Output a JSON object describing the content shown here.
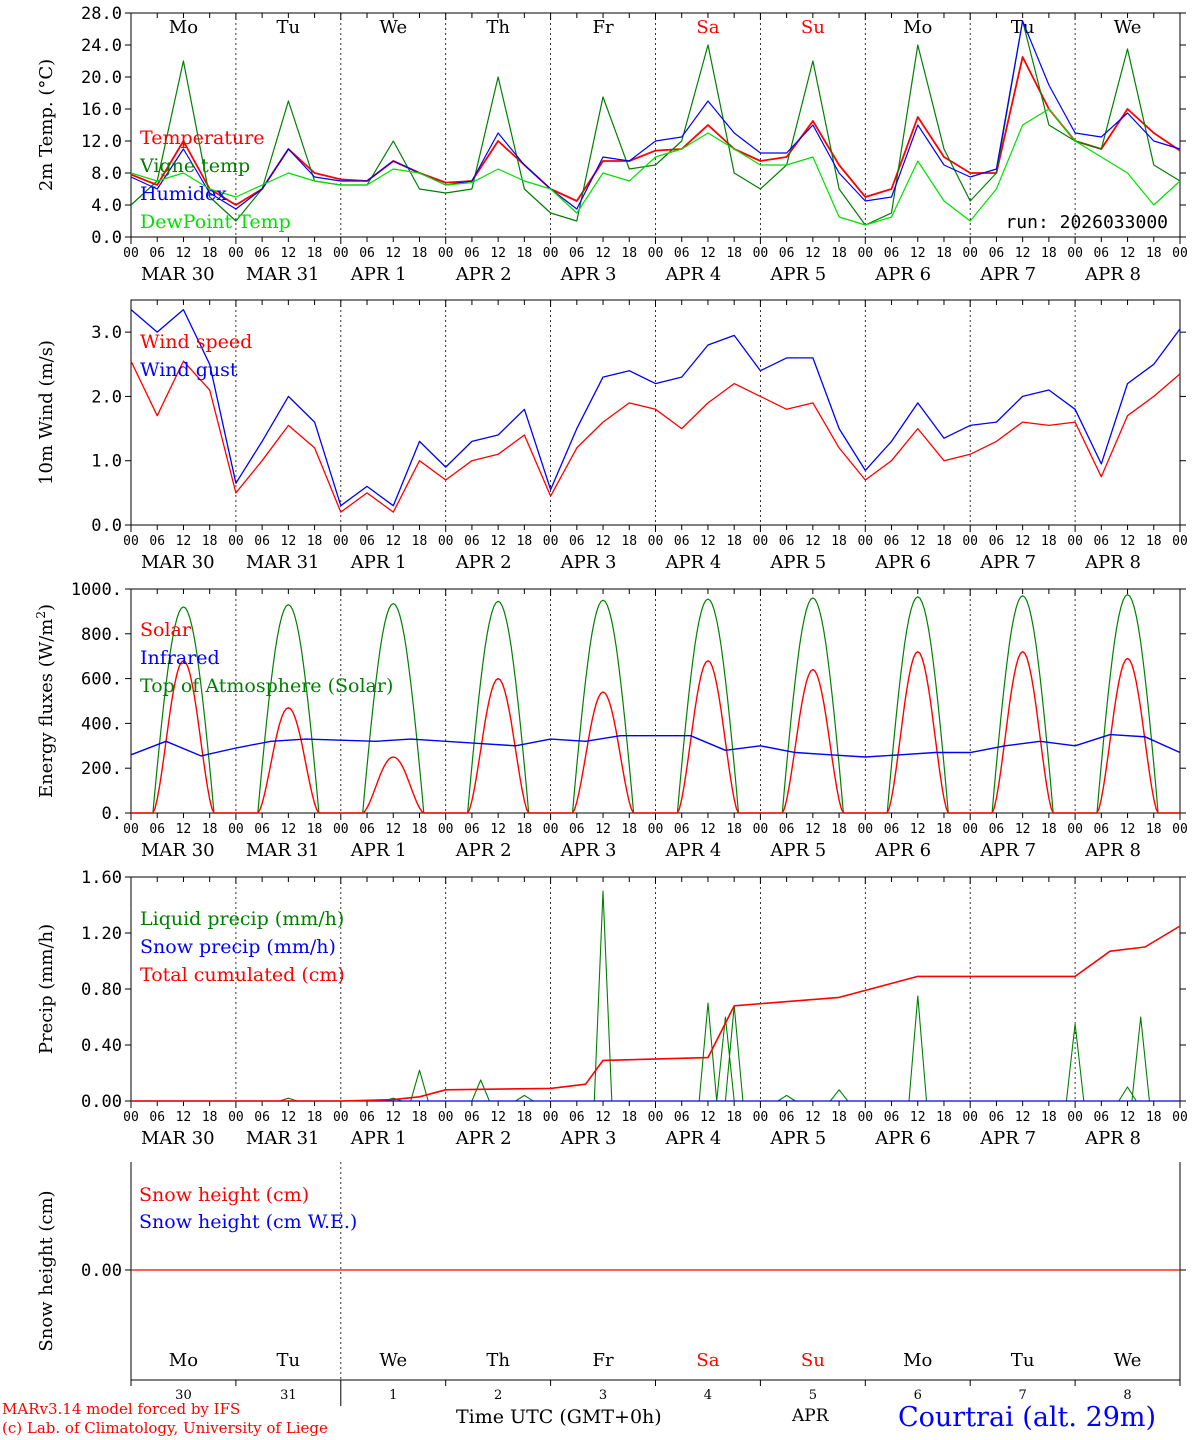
{
  "run_label": "run: 2026033000",
  "footer": {
    "model_line": "MARv3.14 model forced by IFS",
    "copyright_line": "(c) Lab. of Climatology, University of Liege",
    "time_axis_label": "Time UTC (GMT+0h)",
    "month_label": "APR",
    "station_label": "Courtrai (alt. 29m)"
  },
  "days": [
    "Mo",
    "Tu",
    "We",
    "Th",
    "Fr",
    "Sa",
    "Su",
    "Mo",
    "Tu",
    "We"
  ],
  "weekend_flags": [
    false,
    false,
    false,
    false,
    false,
    true,
    true,
    false,
    false,
    false
  ],
  "date_labels": [
    "MAR 30",
    "MAR 31",
    "APR  1",
    "APR  2",
    "APR  3",
    "APR  4",
    "APR  5",
    "APR  6",
    "APR  7",
    "APR  8"
  ],
  "day_numbers": [
    "30",
    "31",
    "1",
    "2",
    "3",
    "4",
    "5",
    "6",
    "7",
    "8"
  ],
  "hour_ticks": [
    "00",
    "06",
    "12",
    "18"
  ],
  "last_tick": "00",
  "colors": {
    "red": "#ff0000",
    "green": "#008000",
    "blue": "#0000ff",
    "lightgreen": "#00e000",
    "grid": "#000000"
  },
  "chart_data": [
    {
      "type": "line",
      "title": "Temperature",
      "ylabel": "2m Temp. (°C)",
      "ylim": [
        0,
        28
      ],
      "yticks": [
        "0.0",
        "4.0",
        "8.0",
        "12.0",
        "16.0",
        "20.0",
        "24.0",
        "28.0"
      ],
      "yticks_values": [
        0,
        4,
        8,
        12,
        16,
        20,
        24,
        28
      ],
      "x_hours": [
        0,
        6,
        12,
        18,
        24,
        30,
        36,
        42,
        48,
        54,
        60,
        66,
        72,
        78,
        84,
        90,
        96,
        102,
        108,
        114,
        120,
        126,
        132,
        138,
        144,
        150,
        156,
        162,
        168,
        174,
        180,
        186,
        192,
        198,
        204,
        210,
        216,
        222,
        228,
        234,
        240
      ],
      "series": [
        {
          "name": "Temperature",
          "color": "red",
          "values": [
            7.8,
            6.5,
            12.0,
            6.0,
            4.0,
            6.0,
            11.0,
            8.0,
            7.2,
            7.0,
            9.5,
            8.0,
            6.8,
            7.0,
            12.0,
            9.0,
            6.0,
            4.5,
            9.5,
            9.5,
            10.8,
            11.0,
            14.0,
            11.0,
            9.5,
            10.0,
            14.5,
            9.0,
            5.0,
            6.0,
            15.0,
            10.0,
            8.0,
            8.0,
            22.5,
            16.0,
            12.0,
            11.0,
            16.0,
            13.0,
            10.8
          ]
        },
        {
          "name": "Vigne temp",
          "color": "green",
          "values": [
            4.0,
            7.0,
            22.0,
            5.0,
            2.0,
            6.0,
            17.0,
            7.0,
            6.5,
            6.5,
            12.0,
            6.0,
            5.5,
            6.0,
            20.0,
            6.0,
            3.0,
            2.0,
            17.5,
            8.5,
            9.0,
            12.0,
            24.0,
            8.0,
            6.0,
            9.0,
            22.0,
            6.0,
            1.5,
            3.0,
            24.0,
            11.0,
            4.5,
            8.0,
            27.0,
            14.0,
            12.0,
            11.0,
            23.5,
            9.0,
            7.0
          ]
        },
        {
          "name": "Humidex",
          "color": "blue",
          "values": [
            7.5,
            6.0,
            11.0,
            5.5,
            3.5,
            6.0,
            11.0,
            7.5,
            7.0,
            7.0,
            9.5,
            8.0,
            6.5,
            7.0,
            13.0,
            9.0,
            6.0,
            3.5,
            10.0,
            9.5,
            12.0,
            12.5,
            17.0,
            13.0,
            10.5,
            10.5,
            14.0,
            8.0,
            4.5,
            5.0,
            14.0,
            9.0,
            7.5,
            8.5,
            27.0,
            19.0,
            13.0,
            12.5,
            15.5,
            12.0,
            11.0
          ]
        },
        {
          "name": "DewPoint Temp",
          "color": "lightgreen",
          "values": [
            8.0,
            7.0,
            8.0,
            6.0,
            5.0,
            6.5,
            8.0,
            7.0,
            6.5,
            6.5,
            8.5,
            8.0,
            6.5,
            6.8,
            8.5,
            7.0,
            6.0,
            3.0,
            8.0,
            7.0,
            10.0,
            11.0,
            13.0,
            11.0,
            9.0,
            9.0,
            10.0,
            2.5,
            1.5,
            2.5,
            9.5,
            4.5,
            2.0,
            6.0,
            14.0,
            16.0,
            12.0,
            10.0,
            8.0,
            4.0,
            7.0
          ]
        }
      ]
    },
    {
      "type": "line",
      "title": "Wind",
      "ylabel": "10m Wind (m/s)",
      "ylim": [
        0,
        3.5
      ],
      "yticks": [
        "0.0",
        "1.0",
        "2.0",
        "3.0"
      ],
      "yticks_values": [
        0,
        1,
        2,
        3
      ],
      "x_hours": [
        0,
        6,
        12,
        18,
        24,
        30,
        36,
        42,
        48,
        54,
        60,
        66,
        72,
        78,
        84,
        90,
        96,
        102,
        108,
        114,
        120,
        126,
        132,
        138,
        144,
        150,
        156,
        162,
        168,
        174,
        180,
        186,
        192,
        198,
        204,
        210,
        216,
        222,
        228,
        234,
        240
      ],
      "series": [
        {
          "name": "Wind speed",
          "color": "red",
          "values": [
            2.55,
            1.7,
            2.55,
            2.1,
            0.5,
            1.0,
            1.55,
            1.2,
            0.2,
            0.5,
            0.2,
            1.0,
            0.7,
            1.0,
            1.1,
            1.4,
            0.45,
            1.2,
            1.6,
            1.9,
            1.8,
            1.5,
            1.9,
            2.2,
            2.0,
            1.8,
            1.9,
            1.2,
            0.7,
            1.0,
            1.5,
            1.0,
            1.1,
            1.3,
            1.6,
            1.55,
            1.6,
            0.75,
            1.7,
            2.0,
            2.35
          ]
        },
        {
          "name": "Wind gust",
          "color": "blue",
          "values": [
            3.35,
            3.0,
            3.35,
            2.5,
            0.65,
            1.3,
            2.0,
            1.6,
            0.3,
            0.6,
            0.3,
            1.3,
            0.9,
            1.3,
            1.4,
            1.8,
            0.55,
            1.5,
            2.3,
            2.4,
            2.2,
            2.3,
            2.8,
            2.95,
            2.4,
            2.6,
            2.6,
            1.5,
            0.85,
            1.3,
            1.9,
            1.35,
            1.55,
            1.6,
            2.0,
            2.1,
            1.8,
            0.95,
            2.2,
            2.5,
            3.05
          ]
        }
      ]
    },
    {
      "type": "line",
      "title": "Energy fluxes",
      "ylabel": "Energy fluxes (W/m²)",
      "ylim": [
        0,
        1000
      ],
      "yticks": [
        "0.",
        "200.",
        "400.",
        "600.",
        "800.",
        "1000."
      ],
      "yticks_values": [
        0,
        200,
        400,
        600,
        800,
        1000
      ],
      "tick_sup": "2",
      "day_peaks": {
        "solar": [
          680,
          470,
          250,
          600,
          540,
          680,
          640,
          720,
          720,
          690
        ],
        "toa": [
          920,
          930,
          935,
          945,
          950,
          955,
          960,
          965,
          970,
          975
        ]
      },
      "infrared_values": [
        260,
        320,
        255,
        290,
        320,
        330,
        325,
        320,
        330,
        320,
        310,
        300,
        330,
        320,
        345,
        345,
        345,
        280,
        300,
        270,
        260,
        250,
        260,
        270,
        270,
        300,
        320,
        300,
        350,
        340,
        270
      ],
      "series": [
        {
          "name": "Solar",
          "color": "red"
        },
        {
          "name": "Infrared",
          "color": "blue"
        },
        {
          "name": "Top of Atmosphere (Solar)",
          "color": "green"
        }
      ]
    },
    {
      "type": "line",
      "title": "Precipitation",
      "ylabel": "Precip (mm/h)",
      "ylim": [
        0,
        1.6
      ],
      "yticks": [
        "0.00",
        "0.40",
        "0.80",
        "1.20",
        "1.60"
      ],
      "yticks_values": [
        0,
        0.4,
        0.8,
        1.2,
        1.6
      ],
      "series": [
        {
          "name": "Liquid precip (mm/h)",
          "color": "green",
          "peaks": [
            [
              36,
              0.02
            ],
            [
              60,
              0.02
            ],
            [
              66,
              0.22
            ],
            [
              80,
              0.15
            ],
            [
              90,
              0.04
            ],
            [
              108,
              1.5
            ],
            [
              132,
              0.7
            ],
            [
              136,
              0.6
            ],
            [
              138,
              0.68
            ],
            [
              150,
              0.04
            ],
            [
              162,
              0.08
            ],
            [
              180,
              0.75
            ],
            [
              216,
              0.55
            ],
            [
              228,
              0.1
            ],
            [
              231,
              0.6
            ]
          ]
        },
        {
          "name": "Snow precip (mm/h)",
          "color": "blue",
          "values": [
            0,
            0
          ]
        },
        {
          "name": "Total cumulated (cm)",
          "color": "red",
          "steps": [
            [
              0,
              0
            ],
            [
              48,
              0.0
            ],
            [
              60,
              0.01
            ],
            [
              66,
              0.03
            ],
            [
              72,
              0.08
            ],
            [
              96,
              0.09
            ],
            [
              104,
              0.12
            ],
            [
              108,
              0.29
            ],
            [
              132,
              0.31
            ],
            [
              138,
              0.68
            ],
            [
              162,
              0.74
            ],
            [
              180,
              0.89
            ],
            [
              216,
              0.89
            ],
            [
              224,
              1.07
            ],
            [
              232,
              1.1
            ],
            [
              240,
              1.25
            ]
          ]
        }
      ]
    },
    {
      "type": "line",
      "title": "Snow height",
      "ylabel": "Snow height (cm)",
      "yticks": [
        "0.00"
      ],
      "series": [
        {
          "name": "Snow height (cm)",
          "color": "red",
          "values": [
            0,
            0
          ]
        },
        {
          "name": "Snow height (cm W.E.)",
          "color": "blue",
          "values": [
            0,
            0
          ]
        }
      ]
    }
  ]
}
